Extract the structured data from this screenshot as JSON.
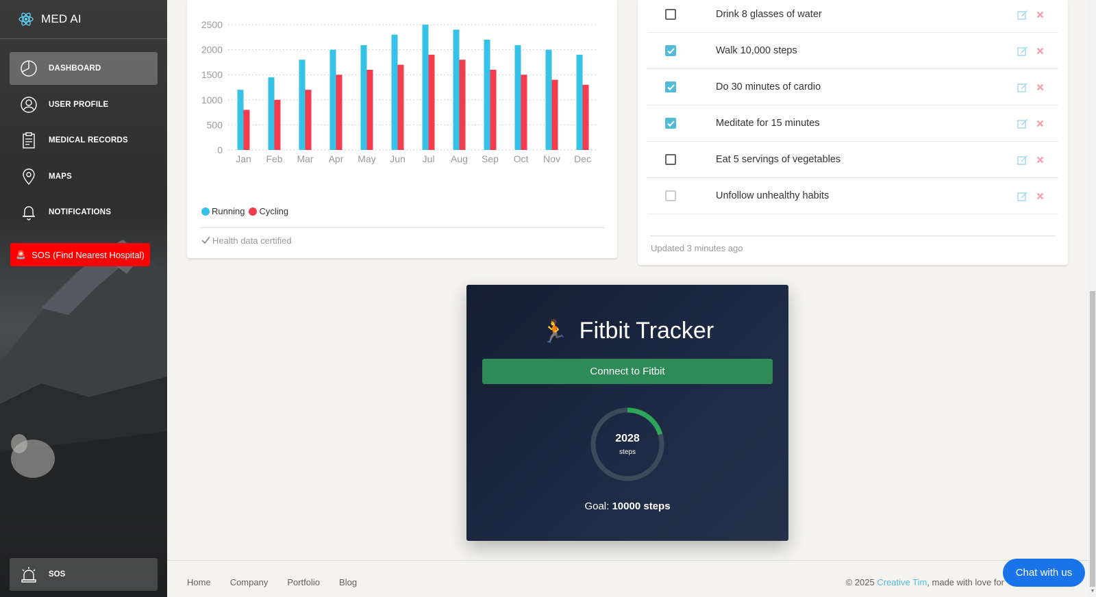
{
  "sidebar": {
    "brand": "MED AI",
    "items": [
      {
        "label": "DASHBOARD",
        "icon": "pie-chart-icon",
        "active": true
      },
      {
        "label": "USER PROFILE",
        "icon": "user-icon"
      },
      {
        "label": "MEDICAL RECORDS",
        "icon": "clipboard-icon"
      },
      {
        "label": "MAPS",
        "icon": "map-pin-icon"
      },
      {
        "label": "NOTIFICATIONS",
        "icon": "bell-icon"
      }
    ],
    "sos_button": "SOS (Find Nearest Hospital)",
    "sos_bottom": "SOS"
  },
  "chart_card": {
    "legend": [
      "Running",
      "Cycling"
    ],
    "stats": "Health data certified"
  },
  "chart_data": {
    "type": "bar",
    "categories": [
      "Jan",
      "Feb",
      "Mar",
      "Apr",
      "May",
      "Jun",
      "Jul",
      "Aug",
      "Sep",
      "Oct",
      "Nov",
      "Dec"
    ],
    "series": [
      {
        "name": "Running",
        "color": "#36c1e6",
        "values": [
          1200,
          1450,
          1800,
          2000,
          2090,
          2300,
          2500,
          2400,
          2200,
          2090,
          2000,
          1900
        ]
      },
      {
        "name": "Cycling",
        "color": "#f33d4e",
        "values": [
          800,
          1000,
          1200,
          1500,
          1600,
          1700,
          1900,
          1800,
          1600,
          1500,
          1400,
          1300
        ]
      }
    ],
    "yticks": [
      0,
      500,
      1000,
      1500,
      2000,
      2500
    ],
    "ylim": [
      0,
      2500
    ],
    "grid": true
  },
  "tasks": {
    "items": [
      {
        "text": "Drink 8 glasses of water",
        "checked": false
      },
      {
        "text": "Walk 10,000 steps",
        "checked": true
      },
      {
        "text": "Do 30 minutes of cardio",
        "checked": true
      },
      {
        "text": "Meditate for 15 minutes",
        "checked": true
      },
      {
        "text": "Eat 5 servings of vegetables",
        "checked": false
      },
      {
        "text": "Unfollow unhealthy habits",
        "checked": false
      }
    ],
    "updated": "Updated 3 minutes ago"
  },
  "fitbit": {
    "runner": "🏃",
    "title": "Fitbit Tracker",
    "connect_label": "Connect to Fitbit",
    "steps": "2028",
    "steps_unit": "steps",
    "goal_label": "Goal:",
    "goal_value": "10000 steps",
    "progress": 0.2028
  },
  "footer": {
    "links": [
      "Home",
      "Company",
      "Portfolio",
      "Blog"
    ],
    "copyright_prefix": "© 2025 ",
    "copyright_brand": "Creative Tim",
    "copyright_suffix": ", made with love for"
  },
  "chat": {
    "label": "Chat with us"
  }
}
